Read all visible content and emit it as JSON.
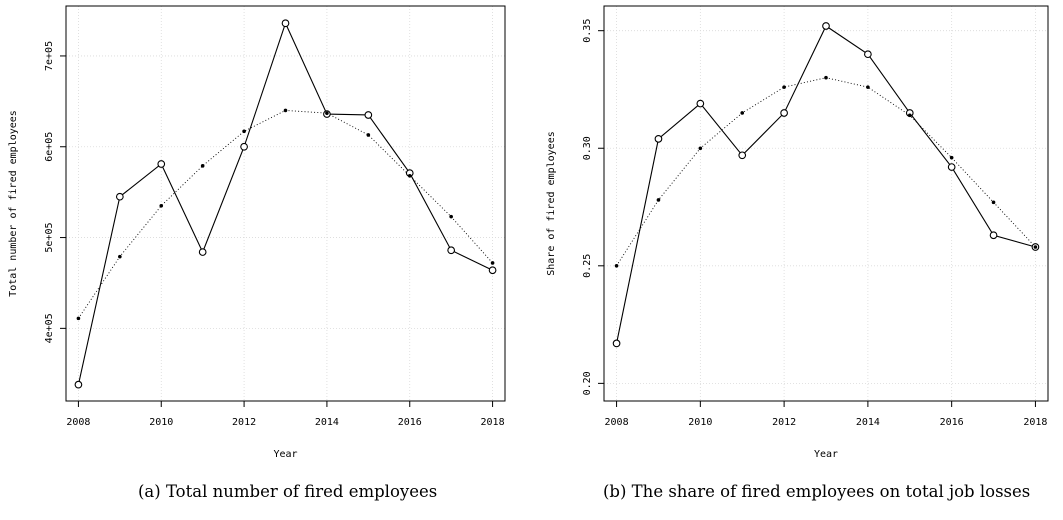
{
  "chart_data": [
    {
      "type": "line",
      "caption": "(a) Total number of fired employees",
      "xlabel": "Year",
      "ylabel": "Total number of fired employees",
      "xlim": [
        2007.7,
        2018.3
      ],
      "ylim": [
        320000,
        755000
      ],
      "x_ticks": [
        2008,
        2010,
        2012,
        2014,
        2016,
        2018
      ],
      "x_tick_labels": [
        "2008",
        "2010",
        "2012",
        "2014",
        "2016",
        "2018"
      ],
      "y_ticks": [
        400000,
        500000,
        600000,
        700000
      ],
      "y_tick_labels": [
        "4e+05",
        "5e+05",
        "6e+05",
        "7e+05"
      ],
      "grid": true,
      "x": [
        2008,
        2009,
        2010,
        2011,
        2012,
        2013,
        2014,
        2015,
        2016,
        2017,
        2018
      ],
      "series": [
        {
          "style": "solid-open-circles",
          "values": [
            338000,
            545000,
            581000,
            484000,
            600000,
            736000,
            636000,
            635000,
            571000,
            486000,
            464000
          ]
        },
        {
          "style": "dotted-filled-points",
          "values": [
            411000,
            479000,
            535000,
            579000,
            617000,
            640000,
            637000,
            613000,
            568000,
            523000,
            472000
          ]
        }
      ]
    },
    {
      "type": "line",
      "caption": "(b) The share of fired employees on total job losses",
      "xlabel": "Year",
      "ylabel": "Share of fired employees",
      "xlim": [
        2007.7,
        2018.3
      ],
      "ylim": [
        0.1925,
        0.3605
      ],
      "x_ticks": [
        2008,
        2010,
        2012,
        2014,
        2016,
        2018
      ],
      "x_tick_labels": [
        "2008",
        "2010",
        "2012",
        "2014",
        "2016",
        "2018"
      ],
      "y_ticks": [
        0.2,
        0.25,
        0.3,
        0.35
      ],
      "y_tick_labels": [
        "0.20",
        "0.25",
        "0.30",
        "0.35"
      ],
      "grid": true,
      "x": [
        2008,
        2009,
        2010,
        2011,
        2012,
        2013,
        2014,
        2015,
        2016,
        2017,
        2018
      ],
      "series": [
        {
          "style": "solid-open-circles",
          "values": [
            0.217,
            0.304,
            0.319,
            0.297,
            0.315,
            0.352,
            0.34,
            0.315,
            0.292,
            0.263,
            0.258
          ]
        },
        {
          "style": "dotted-filled-points",
          "values": [
            0.25,
            0.278,
            0.3,
            0.315,
            0.326,
            0.33,
            0.326,
            0.314,
            0.296,
            0.277,
            0.258
          ]
        }
      ]
    }
  ]
}
